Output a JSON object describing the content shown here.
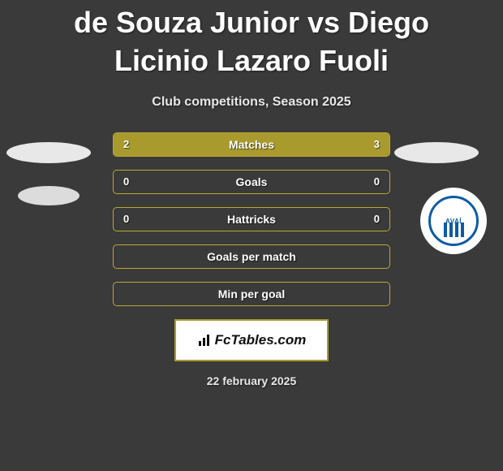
{
  "title": "de Souza Junior vs Diego Licinio Lazaro Fuoli",
  "subtitle": "Club competitions, Season 2025",
  "colors": {
    "background": "#3a3a3a",
    "bar_fill": "#a99a2e",
    "bar_border": "#b9a832",
    "text": "#ffffff",
    "badge_primary": "#0d5aa5"
  },
  "club_badge_label": "AVAÍ",
  "stats": [
    {
      "label": "Matches",
      "left_val": "2",
      "right_val": "3",
      "left_pct": 40,
      "right_pct": 60
    },
    {
      "label": "Goals",
      "left_val": "0",
      "right_val": "0",
      "left_pct": 0,
      "right_pct": 0
    },
    {
      "label": "Hattricks",
      "left_val": "0",
      "right_val": "0",
      "left_pct": 0,
      "right_pct": 0
    },
    {
      "label": "Goals per match",
      "left_val": "",
      "right_val": "",
      "left_pct": 0,
      "right_pct": 0
    },
    {
      "label": "Min per goal",
      "left_val": "",
      "right_val": "",
      "left_pct": 0,
      "right_pct": 0
    }
  ],
  "footer_brand": "FcTables.com",
  "footer_date": "22 february 2025"
}
